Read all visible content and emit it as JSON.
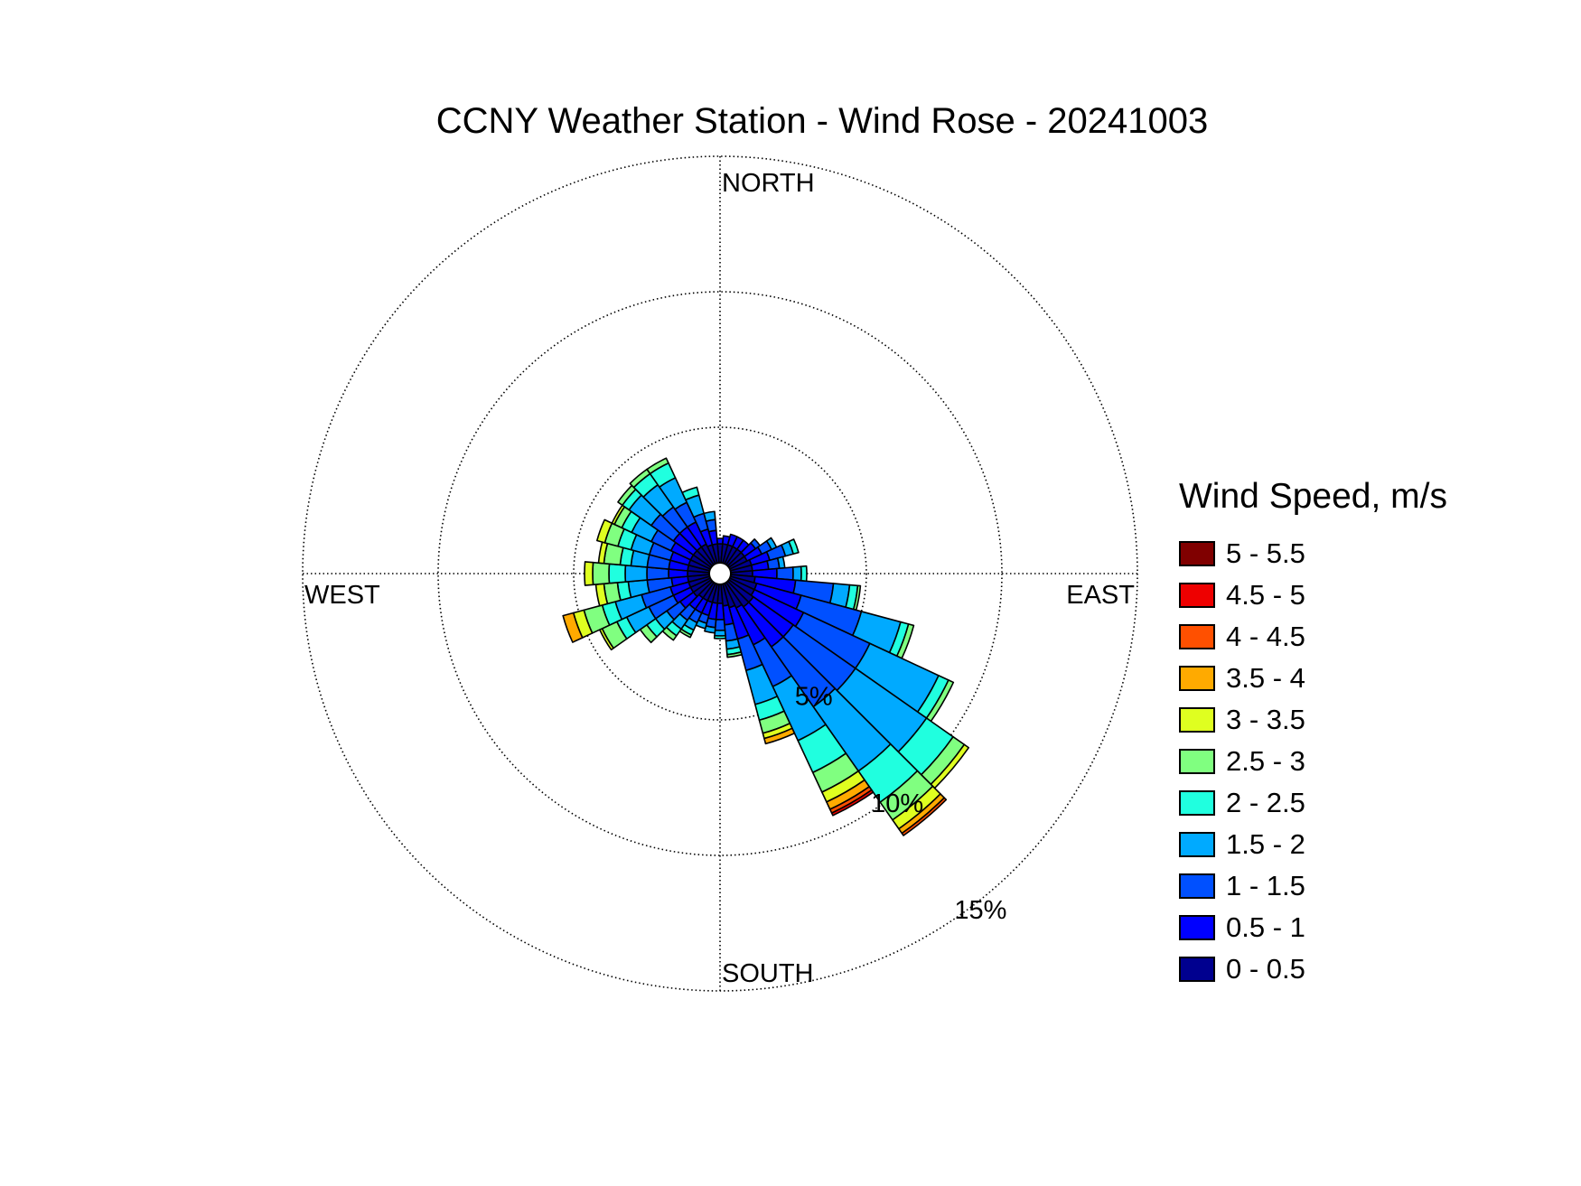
{
  "chart_data": {
    "type": "wind_rose",
    "title": "CCNY Weather Station - Wind Rose - 20241003",
    "directions": {
      "north": "NORTH",
      "south": "SOUTH",
      "east": "EAST",
      "west": "WEST"
    },
    "radial_ticks": [
      {
        "value": 5,
        "label": "5%"
      },
      {
        "value": 10,
        "label": "10%"
      },
      {
        "value": 15,
        "label": "15%"
      }
    ],
    "rmax": 15,
    "legend_title": "Wind Speed, m/s",
    "speed_bins": [
      {
        "label": "0 - 0.5",
        "color": "#00008f"
      },
      {
        "label": "0.5 - 1",
        "color": "#0000ff"
      },
      {
        "label": "1 - 1.5",
        "color": "#0050ff"
      },
      {
        "label": "1.5 - 2",
        "color": "#00aaff"
      },
      {
        "label": "2 - 2.5",
        "color": "#20ffdf"
      },
      {
        "label": "2.5 - 3",
        "color": "#80ff80"
      },
      {
        "label": "3 - 3.5",
        "color": "#dfff20"
      },
      {
        "label": "3.5 - 4",
        "color": "#ffaa00"
      },
      {
        "label": "4 - 4.5",
        "color": "#ff5000"
      },
      {
        "label": "4.5 - 5",
        "color": "#ee0000"
      },
      {
        "label": "5 - 5.5",
        "color": "#800000"
      }
    ],
    "sector_width_deg": 10,
    "sectors": [
      {
        "direction": 0,
        "values": [
          0.7,
          0.2
        ]
      },
      {
        "direction": 10,
        "values": [
          0.7,
          0.3
        ]
      },
      {
        "direction": 20,
        "values": [
          0.7,
          0.4
        ]
      },
      {
        "direction": 30,
        "values": [
          0.7,
          0.4
        ]
      },
      {
        "direction": 40,
        "values": [
          0.7,
          0.4
        ]
      },
      {
        "direction": 50,
        "values": [
          0.7,
          0.5,
          0.2
        ]
      },
      {
        "direction": 60,
        "values": [
          0.7,
          0.6,
          0.4,
          0.2
        ]
      },
      {
        "direction": 70,
        "values": [
          0.8,
          0.7,
          0.6,
          0.3,
          0.2
        ]
      },
      {
        "direction": 80,
        "values": [
          0.8,
          0.6,
          0.4,
          0.2
        ]
      },
      {
        "direction": 90,
        "values": [
          0.8,
          0.9,
          0.6,
          0.3,
          0.2
        ]
      },
      {
        "direction": 100,
        "values": [
          0.9,
          1.5,
          1.4,
          0.6,
          0.3,
          0.1
        ]
      },
      {
        "direction": 110,
        "values": [
          1.0,
          1.7,
          2.3,
          1.5,
          0.3,
          0.2
        ]
      },
      {
        "direction": 120,
        "values": [
          1.0,
          2.0,
          2.7,
          2.8,
          0.4,
          0.2
        ]
      },
      {
        "direction": 130,
        "values": [
          1.1,
          1.8,
          2.8,
          3.2,
          1.2,
          0.5,
          0.2
        ]
      },
      {
        "direction": 140,
        "values": [
          1.1,
          1.8,
          2.7,
          2.9,
          1.4,
          0.8,
          0.4,
          0.2,
          0.1
        ]
      },
      {
        "direction": 150,
        "values": [
          1.0,
          1.5,
          1.7,
          2.2,
          1.3,
          0.8,
          0.4,
          0.3,
          0.15,
          0.1
        ]
      },
      {
        "direction": 160,
        "values": [
          0.9,
          1.2,
          1.2,
          1.3,
          0.6,
          0.5,
          0.2,
          0.2
        ]
      },
      {
        "direction": 170,
        "values": [
          0.8,
          0.7,
          0.6,
          0.3,
          0.2,
          0.1
        ]
      },
      {
        "direction": 180,
        "values": [
          0.7,
          0.6,
          0.4,
          0.2,
          0.1
        ]
      },
      {
        "direction": 190,
        "values": [
          0.7,
          0.6,
          0.3,
          0.2
        ]
      },
      {
        "direction": 200,
        "values": [
          0.7,
          0.5,
          0.3,
          0.2
        ]
      },
      {
        "direction": 210,
        "values": [
          0.7,
          0.5,
          0.4,
          0.3,
          0.2,
          0.1
        ]
      },
      {
        "direction": 220,
        "values": [
          0.7,
          0.5,
          0.5,
          0.4,
          0.3,
          0.2
        ]
      },
      {
        "direction": 230,
        "values": [
          0.8,
          0.6,
          0.6,
          0.5,
          0.4,
          0.3
        ]
      },
      {
        "direction": 240,
        "values": [
          0.8,
          0.7,
          1.0,
          0.9,
          0.4,
          0.6,
          0.1
        ]
      },
      {
        "direction": 250,
        "values": [
          0.8,
          0.7,
          1.1,
          1.0,
          0.5,
          0.7,
          0.4,
          0.4
        ]
      },
      {
        "direction": 260,
        "values": [
          0.8,
          0.6,
          0.9,
          0.7,
          0.4,
          0.5,
          0.3
        ]
      },
      {
        "direction": 270,
        "values": [
          0.8,
          0.7,
          0.8,
          0.8,
          0.6,
          0.6,
          0.3
        ]
      },
      {
        "direction": 280,
        "values": [
          0.8,
          0.7,
          0.8,
          0.6,
          0.4,
          0.6,
          0.2
        ]
      },
      {
        "direction": 290,
        "values": [
          0.8,
          0.7,
          0.8,
          0.7,
          0.5,
          0.5,
          0.3
        ]
      },
      {
        "direction": 300,
        "values": [
          0.8,
          0.8,
          0.8,
          0.8,
          0.4,
          0.3,
          0.1
        ]
      },
      {
        "direction": 310,
        "values": [
          0.8,
          0.9,
          1.0,
          1.0,
          0.3,
          0.2
        ]
      },
      {
        "direction": 320,
        "values": [
          0.8,
          0.9,
          0.9,
          1.0,
          0.5,
          0.2
        ]
      },
      {
        "direction": 330,
        "values": [
          0.8,
          0.9,
          0.8,
          1.0,
          0.6,
          0.2
        ]
      },
      {
        "direction": 340,
        "values": [
          0.7,
          0.6,
          0.6,
          0.7,
          0.3
        ]
      },
      {
        "direction": 350,
        "values": [
          0.7,
          0.5,
          0.4,
          0.3
        ]
      }
    ]
  }
}
